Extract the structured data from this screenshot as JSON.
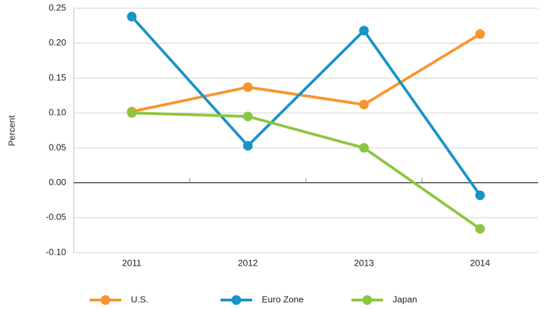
{
  "chart_data": {
    "type": "line",
    "y_label": "Percent",
    "categories": [
      "2011",
      "2012",
      "2013",
      "2014"
    ],
    "series": [
      {
        "name": "U.S.",
        "color": "#f7962e",
        "values": [
          0.102,
          0.137,
          0.112,
          0.213
        ]
      },
      {
        "name": "Euro Zone",
        "color": "#1a93c9",
        "values": [
          0.238,
          0.053,
          0.218,
          -0.018
        ]
      },
      {
        "name": "Japan",
        "color": "#8cc63f",
        "values": [
          0.1,
          0.095,
          0.05,
          -0.066
        ]
      }
    ],
    "ylim": [
      -0.1,
      0.25
    ],
    "yticks": [
      0.25,
      {
        "value": 0.2,
        "label": "0.20"
      },
      0.15,
      {
        "value": 0.1,
        "label": "0.10"
      },
      0.05,
      {
        "value": 0,
        "label": "0.00"
      },
      -0.05,
      {
        "value": -0.1,
        "label": "-0.10"
      }
    ],
    "grid": true,
    "legend": "bottom"
  }
}
